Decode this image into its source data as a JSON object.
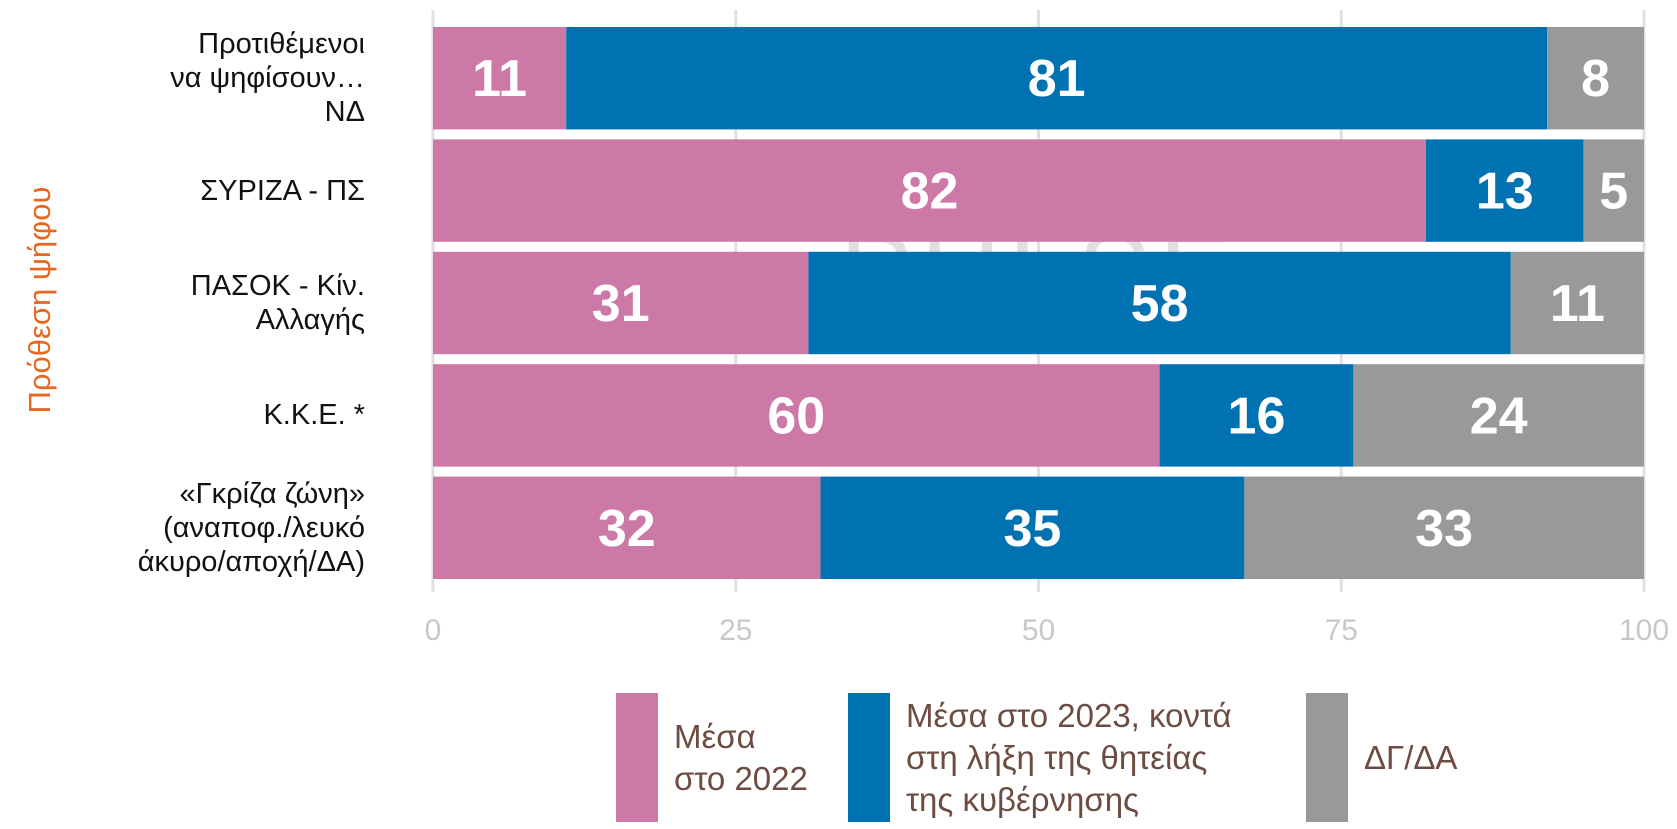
{
  "chart_data": {
    "type": "stacked-bar-horizontal",
    "y_axis_label": "Πρόθεση ψήφου",
    "categories": [
      "Προτιθέμενοι\nνα ψηφίσουν…\nΝΔ",
      "ΣΥΡΙΖΑ - ΠΣ",
      "ΠΑΣΟΚ - Κίν.\nΑλλαγής",
      "Κ.Κ.Ε. *",
      "«Γκρίζα ζώνη»\n(αναποφ./λευκό\nάκυρο/αποχή/ΔΑ)"
    ],
    "series": [
      {
        "name": "Μέσα\nστο 2022",
        "color": "#cc79a7",
        "values": [
          11,
          82,
          31,
          60,
          32
        ]
      },
      {
        "name": "Μέσα στο 2023, κοντά\nστη λήξη της θητείας\nτης κυβέρνησης",
        "color": "#0072b2",
        "values": [
          81,
          13,
          58,
          16,
          35
        ]
      },
      {
        "name": "ΔΓ/ΔΑ",
        "color": "#999999",
        "values": [
          8,
          5,
          11,
          24,
          33
        ]
      }
    ],
    "xlim": [
      0,
      100
    ],
    "xticks": [
      0,
      25,
      50,
      75,
      100
    ],
    "grid": true,
    "legend": "bottom",
    "watermark": "PULSE"
  }
}
